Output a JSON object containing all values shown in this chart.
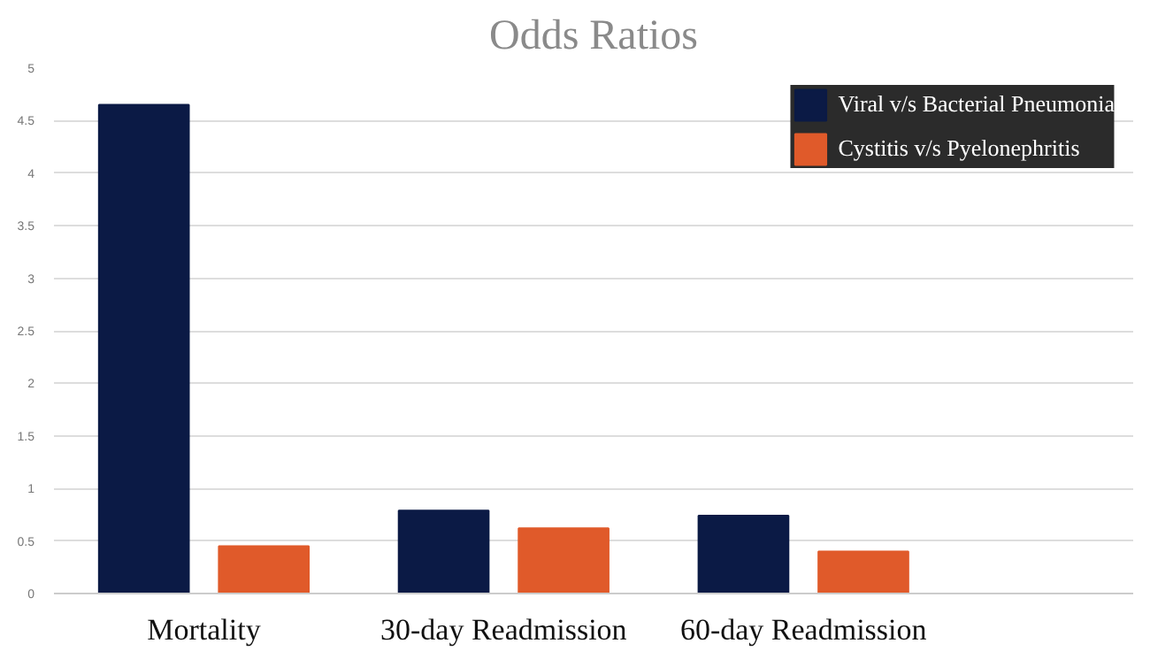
{
  "chart_data": {
    "type": "bar",
    "title": "Odds Ratios",
    "categories": [
      "Mortality",
      "30-day Readmission",
      "60-day Readmission"
    ],
    "series": [
      {
        "name": "Viral v/s Bacterial Pneumonia",
        "color": "#0b1a45",
        "values": [
          4.65,
          0.79,
          0.74
        ]
      },
      {
        "name": "Cystitis v/s Pyelonephritis",
        "color": "#e05a2a",
        "values": [
          0.45,
          0.62,
          0.4
        ]
      }
    ],
    "ylim": [
      0,
      5
    ],
    "yticks": [
      0,
      0.5,
      1,
      1.5,
      2,
      2.5,
      3,
      3.5,
      4,
      4.5,
      5
    ],
    "grid": "y",
    "legend": "top right"
  }
}
